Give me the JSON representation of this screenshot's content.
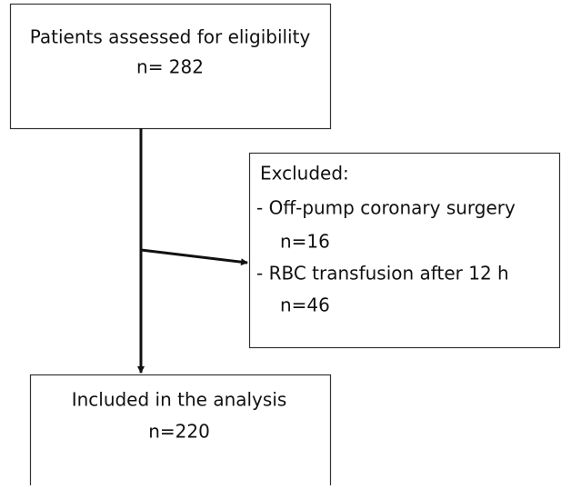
{
  "nodes": [
    {
      "label": "Patients assessed for eligibility",
      "count": "n= 282"
    },
    {
      "label": "Included in the analysis",
      "count": "n=220"
    }
  ],
  "excluded": {
    "title": "Excluded:",
    "items": [
      {
        "reason": "- Off-pump coronary surgery",
        "count": "n=16"
      },
      {
        "reason": "- RBC transfusion after 12 h",
        "count": "n=46"
      }
    ]
  }
}
